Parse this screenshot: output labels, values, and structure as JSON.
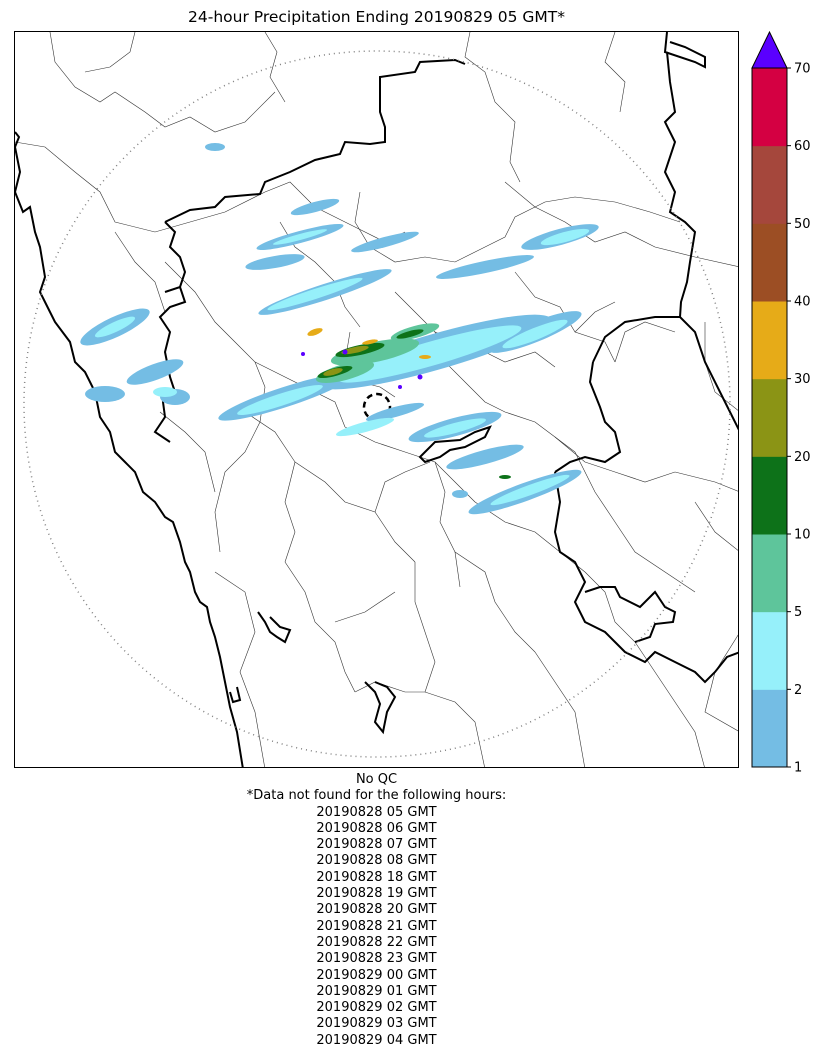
{
  "title": "24-hour Precipitation Ending 20190829 05 GMT*",
  "qc_note": "No QC",
  "missing_header": "*Data not found for the following hours:",
  "missing_hours": [
    "20190828 05 GMT",
    "20190828 06 GMT",
    "20190828 07 GMT",
    "20190828 08 GMT",
    "20190828 18 GMT",
    "20190828 19 GMT",
    "20190828 20 GMT",
    "20190828 21 GMT",
    "20190828 22 GMT",
    "20190828 23 GMT",
    "20190829 00 GMT",
    "20190829 01 GMT",
    "20190829 02 GMT",
    "20190829 03 GMT",
    "20190829 04 GMT"
  ],
  "colorbar": {
    "boundaries": [
      1,
      2,
      5,
      10,
      20,
      30,
      40,
      50,
      60,
      70
    ],
    "tick_labels": [
      "1",
      "2",
      "5",
      "10",
      "20",
      "30",
      "40",
      "50",
      "60",
      "70"
    ],
    "colors": [
      "#74bde4",
      "#96f0fa",
      "#5ec59b",
      "#0d7219",
      "#8b9415",
      "#e6ab18",
      "#9c4e24",
      "#a5473c",
      "#d40042"
    ],
    "extend_color": "#5a00ff"
  },
  "colors": {
    "state_border": "#000000",
    "district_border": "#333333",
    "range_ring": "#808080"
  }
}
